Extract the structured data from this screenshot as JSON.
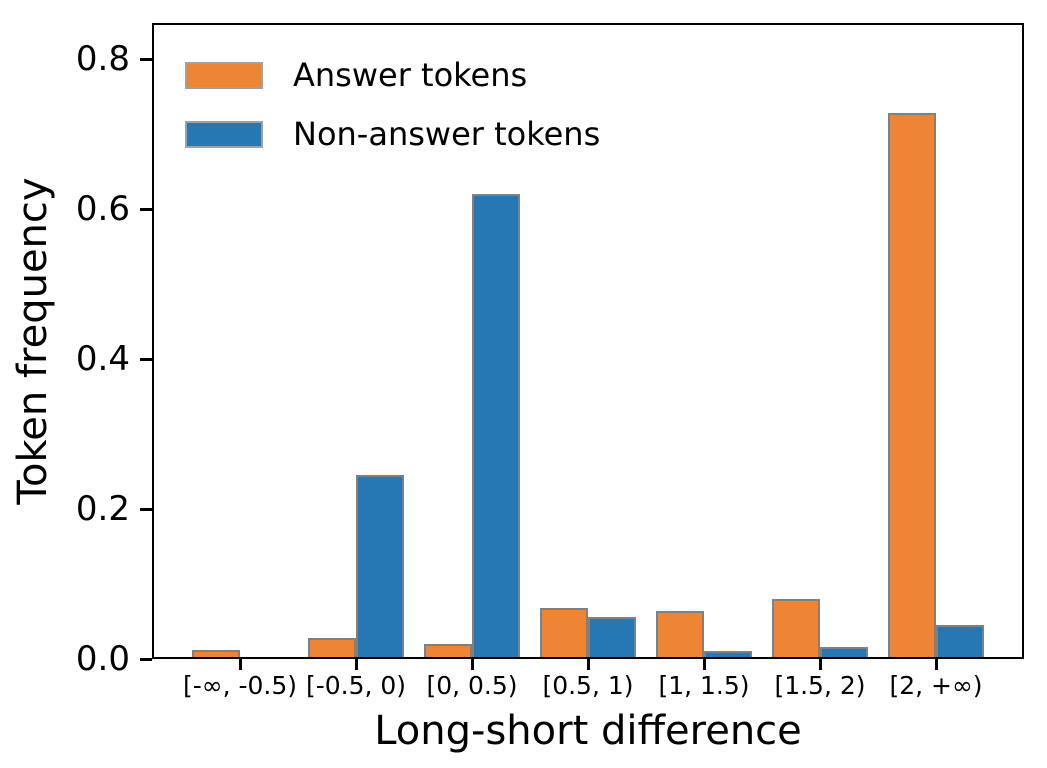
{
  "chart_data": {
    "type": "bar",
    "title": "",
    "xlabel": "Long-short difference",
    "ylabel": "Token frequency",
    "categories": [
      "[-∞, -0.5)",
      "[-0.5, 0)",
      "[0, 0.5)",
      "[0.5, 1)",
      "[1, 1.5)",
      "[1.5, 2)",
      "[2, +∞)"
    ],
    "series": [
      {
        "name": "Answer tokens",
        "color": "#ee8534",
        "values": [
          0.012,
          0.028,
          0.02,
          0.068,
          0.064,
          0.08,
          0.728
        ]
      },
      {
        "name": "Non-answer tokens",
        "color": "#2578b4",
        "values": [
          0.001,
          0.245,
          0.62,
          0.056,
          0.01,
          0.016,
          0.045
        ]
      }
    ],
    "bar_edge_color": "#808080",
    "yticks": [
      "0.0",
      "0.2",
      "0.4",
      "0.6",
      "0.8"
    ],
    "ytick_values": [
      0.0,
      0.2,
      0.4,
      0.6,
      0.8
    ],
    "ylim": [
      0,
      0.848
    ],
    "legend_position": "upper-left",
    "grid": false
  }
}
